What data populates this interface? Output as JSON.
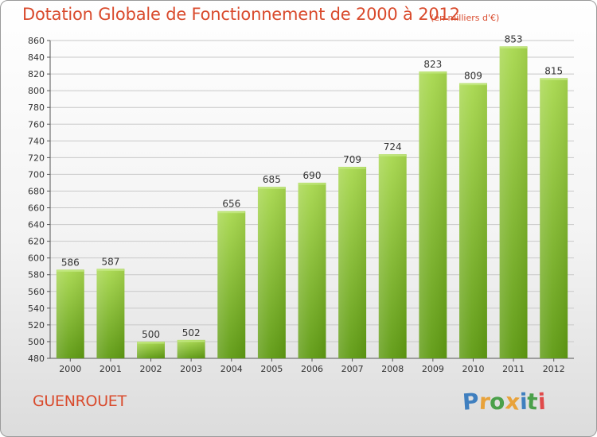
{
  "header": {
    "title": "Dotation Globale de Fonctionnement de 2000 à 2012",
    "subtitle": "(en milliers d'€)"
  },
  "footer": {
    "commune": "GUENROUET",
    "brand_letters": [
      "P",
      "r",
      "o",
      "x",
      "i",
      "t",
      "i"
    ],
    "brand_colors": [
      "#3f7fbf",
      "#e8a23a",
      "#4aa04a",
      "#e8a23a",
      "#3f7fbf",
      "#4aa04a",
      "#e04a4a"
    ]
  },
  "colors": {
    "bar_light": "#a8d84e",
    "bar_dark": "#5e9a12",
    "grid": "#c8c8c8",
    "text": "#333333",
    "accent": "#d94a2c"
  },
  "chart_data": {
    "type": "bar",
    "categories": [
      "2000",
      "2001",
      "2002",
      "2003",
      "2004",
      "2005",
      "2006",
      "2007",
      "2008",
      "2009",
      "2010",
      "2011",
      "2012"
    ],
    "values": [
      586,
      587,
      500,
      502,
      656,
      685,
      690,
      709,
      724,
      823,
      809,
      853,
      815
    ],
    "title": "Dotation Globale de Fonctionnement de 2000 à 2012",
    "ylim": [
      480,
      860
    ],
    "yticks": [
      480,
      500,
      520,
      540,
      560,
      580,
      600,
      620,
      640,
      660,
      680,
      700,
      720,
      740,
      760,
      780,
      800,
      820,
      840,
      860
    ],
    "grid": true,
    "data_labels": true
  }
}
